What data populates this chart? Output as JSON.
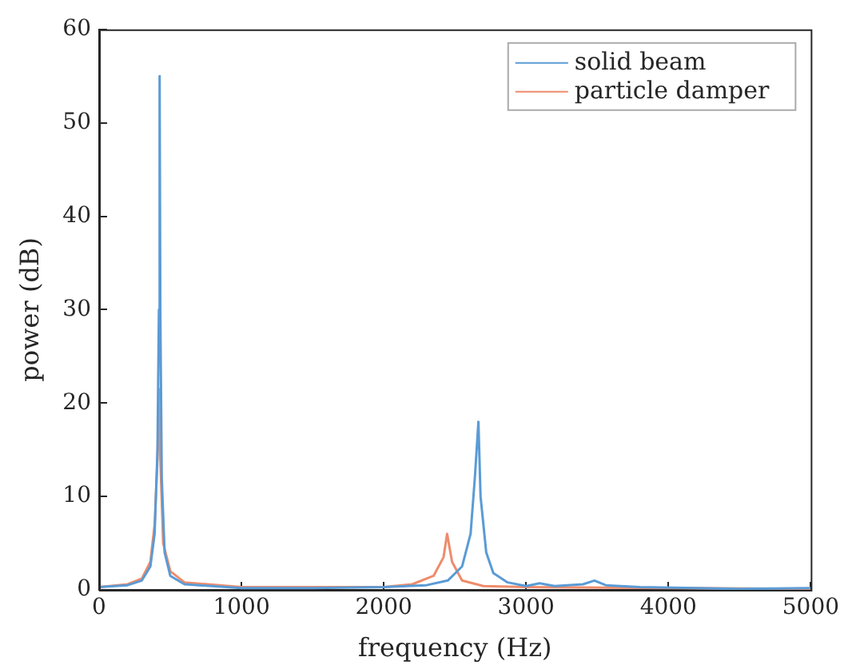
{
  "chart_data": {
    "type": "line",
    "xlabel": "frequency (Hz)",
    "ylabel": "power (dB)",
    "xlim": [
      0,
      5000
    ],
    "xticks": [
      0,
      1000,
      2000,
      3000,
      4000,
      5000
    ],
    "ylim": [
      0,
      60
    ],
    "yticks": [
      0,
      10,
      20,
      30,
      40,
      50,
      60
    ],
    "legend": "top right",
    "grid": false,
    "marker": "none",
    "line_style": "solid",
    "series": [
      {
        "name": "solid beam",
        "color": "#5a9bd5",
        "x": [
          0,
          200,
          300,
          360,
          390,
          410,
          420,
          425,
          430,
          440,
          460,
          500,
          600,
          1000,
          1500,
          2000,
          2300,
          2450,
          2550,
          2610,
          2640,
          2665,
          2680,
          2720,
          2770,
          2870,
          3000,
          3095,
          3200,
          3400,
          3480,
          3560,
          3800,
          4500,
          5000
        ],
        "values": [
          0.3,
          0.5,
          1,
          2.5,
          6,
          15,
          30,
          55,
          30,
          12,
          4,
          1.5,
          0.6,
          0.2,
          0.2,
          0.3,
          0.5,
          1,
          2.5,
          6,
          12,
          18,
          10,
          4,
          1.8,
          0.8,
          0.4,
          0.7,
          0.4,
          0.6,
          1,
          0.5,
          0.3,
          0.1,
          0.2
        ]
      },
      {
        "name": "particle damper",
        "color": "#ee8c6c",
        "x": [
          0,
          200,
          300,
          360,
          390,
          410,
          420,
          430,
          450,
          500,
          600,
          1000,
          2000,
          2200,
          2350,
          2420,
          2445,
          2480,
          2550,
          2700,
          3000,
          5000
        ],
        "values": [
          0.3,
          0.6,
          1.2,
          3,
          7,
          14,
          21.5,
          14,
          5,
          2,
          0.8,
          0.3,
          0.3,
          0.6,
          1.5,
          3.5,
          6,
          3,
          1,
          0.4,
          0.3,
          0.1
        ]
      }
    ]
  }
}
